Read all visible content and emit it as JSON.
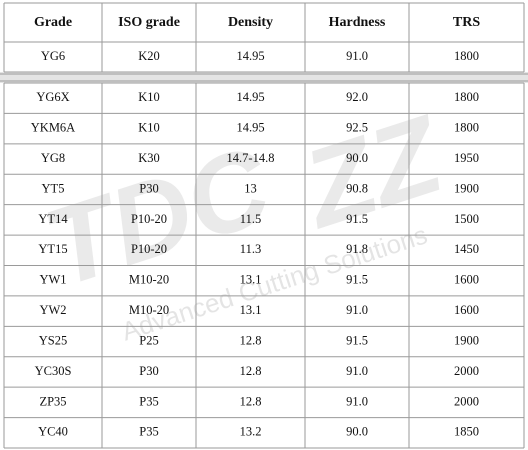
{
  "table": {
    "columns": [
      "Grade",
      "ISO grade",
      "Density",
      "Hardness",
      "TRS"
    ],
    "rows": [
      [
        "YG6",
        "K20",
        "14.95",
        "91.0",
        "1800"
      ],
      [
        "YG6X",
        "K10",
        "14.95",
        "92.0",
        "1800"
      ],
      [
        "YKM6A",
        "K10",
        "14.95",
        "92.5",
        "1800"
      ],
      [
        "YG8",
        "K30",
        "14.7-14.8",
        "90.0",
        "1950"
      ],
      [
        "YT5",
        "P30",
        "13",
        "90.8",
        "1900"
      ],
      [
        "YT14",
        "P10-20",
        "11.5",
        "91.5",
        "1500"
      ],
      [
        "YT15",
        "P10-20",
        "11.3",
        "91.8",
        "1450"
      ],
      [
        "YW1",
        "M10-20",
        "13.1",
        "91.5",
        "1600"
      ],
      [
        "YW2",
        "M10-20",
        "13.1",
        "91.0",
        "1600"
      ],
      [
        "YS25",
        "P25",
        "12.8",
        "91.5",
        "1900"
      ],
      [
        "YC30S",
        "P30",
        "12.8",
        "91.0",
        "2000"
      ],
      [
        "ZP35",
        "P35",
        "12.8",
        "91.0",
        "2000"
      ],
      [
        "YC40",
        "P35",
        "13.2",
        "90.0",
        "1850"
      ]
    ]
  },
  "watermark": {
    "logo_left": "TDC",
    "logo_right": "ZZ",
    "tagline": "Advanced Cutting Solutions"
  }
}
